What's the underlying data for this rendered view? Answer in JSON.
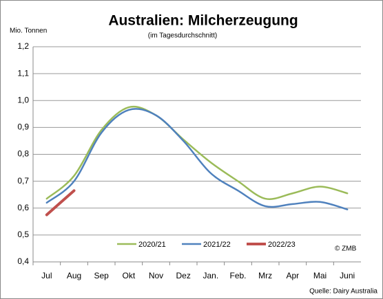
{
  "chart_data": {
    "type": "line",
    "title": "Australien: Milcherzeugung",
    "subtitle": "(im Tagesdurchschnitt)",
    "y_label": "Mio. Tonnen",
    "annotation": "© ZMB",
    "source": "Quelle: Dairy Australia",
    "categories": [
      "Jul",
      "Aug",
      "Sep",
      "Okt",
      "Nov",
      "Dez",
      "Jan.",
      "Feb.",
      "Mrz",
      "Apr",
      "Mai",
      "Juni"
    ],
    "series": [
      {
        "name": "2020/21",
        "color": "#9bbb59",
        "values": [
          0.635,
          0.72,
          0.89,
          0.975,
          0.945,
          0.855,
          0.77,
          0.7,
          0.635,
          0.655,
          0.68,
          0.655
        ]
      },
      {
        "name": "2021/22",
        "color": "#4f81bd",
        "values": [
          0.62,
          0.7,
          0.88,
          0.965,
          0.945,
          0.85,
          0.73,
          0.665,
          0.607,
          0.615,
          0.623,
          0.595
        ]
      },
      {
        "name": "2022/23",
        "color": "#c0504d",
        "values": [
          0.575,
          0.665,
          null,
          null,
          null,
          null,
          null,
          null,
          null,
          null,
          null,
          null
        ]
      }
    ],
    "ylim": [
      0.4,
      1.2
    ],
    "yticks": [
      {
        "value": 0.4,
        "label": "0,4"
      },
      {
        "value": 0.5,
        "label": "0,5"
      },
      {
        "value": 0.6,
        "label": "0,6"
      },
      {
        "value": 0.7,
        "label": "0,7"
      },
      {
        "value": 0.8,
        "label": "0,8"
      },
      {
        "value": 0.9,
        "label": "0,9"
      },
      {
        "value": 1.0,
        "label": "1,0"
      },
      {
        "value": 1.1,
        "label": "1,1"
      },
      {
        "value": 1.2,
        "label": "1,2"
      }
    ],
    "grid": true,
    "legend": "bottom"
  }
}
